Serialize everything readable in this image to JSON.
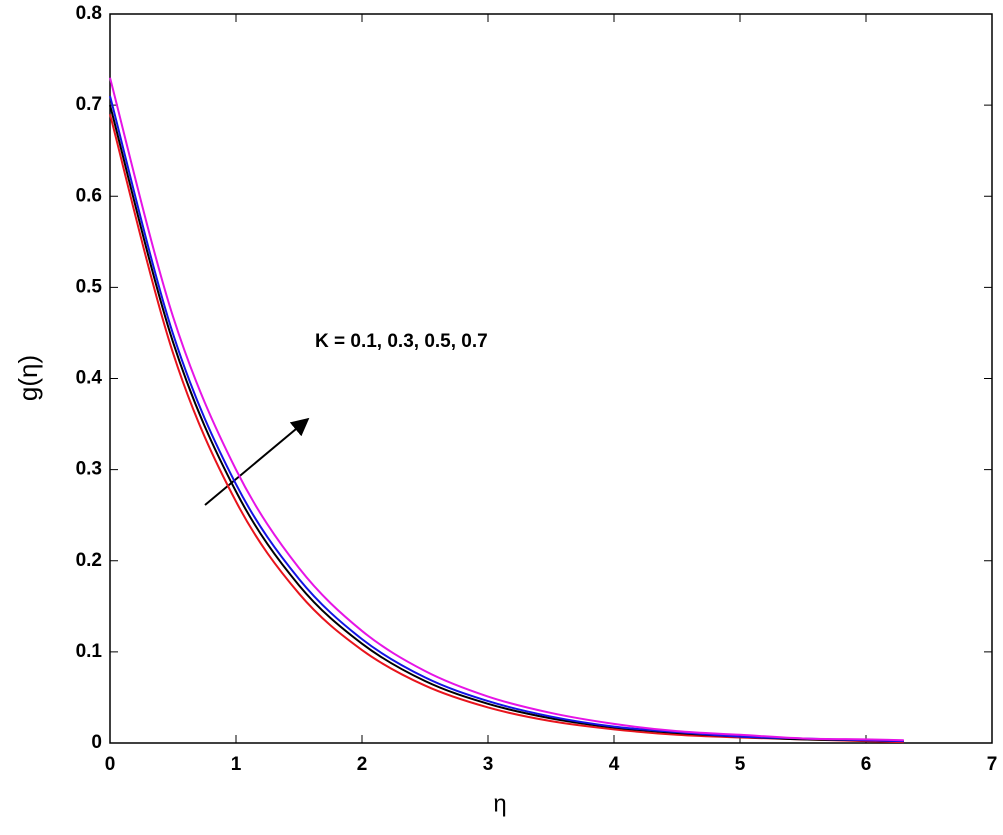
{
  "chart_data": {
    "type": "line",
    "xlabel": "η",
    "ylabel": "g(η)",
    "annotation": "K = 0.1, 0.3, 0.5, 0.7",
    "x": [
      0,
      0.5,
      1,
      1.5,
      2,
      2.5,
      3,
      3.5,
      4,
      4.5,
      5,
      5.5,
      6,
      6.3
    ],
    "series": [
      {
        "color": "#e8141c",
        "values": [
          0.69,
          0.428,
          0.265,
          0.164,
          0.102,
          0.063,
          0.039,
          0.024,
          0.015,
          0.009,
          0.006,
          0.004,
          0.002,
          0.001
        ]
      },
      {
        "color": "#000000",
        "values": [
          0.7,
          0.44,
          0.276,
          0.173,
          0.109,
          0.068,
          0.043,
          0.027,
          0.017,
          0.011,
          0.007,
          0.004,
          0.003,
          0.002
        ]
      },
      {
        "color": "#1414e6",
        "values": [
          0.71,
          0.449,
          0.284,
          0.18,
          0.114,
          0.072,
          0.046,
          0.029,
          0.018,
          0.012,
          0.007,
          0.005,
          0.003,
          0.002
        ]
      },
      {
        "color": "#e614e6",
        "values": [
          0.73,
          0.468,
          0.3,
          0.192,
          0.123,
          0.079,
          0.051,
          0.033,
          0.021,
          0.013,
          0.009,
          0.005,
          0.004,
          0.003
        ]
      }
    ],
    "xlim": [
      0,
      7
    ],
    "xticks": [
      0,
      1,
      2,
      3,
      4,
      5,
      6,
      7
    ],
    "ylim": [
      0,
      0.8
    ],
    "yticks": [
      0,
      0.1,
      0.2,
      0.3,
      0.4,
      0.5,
      0.6,
      0.7,
      0.8
    ],
    "grid": false
  }
}
